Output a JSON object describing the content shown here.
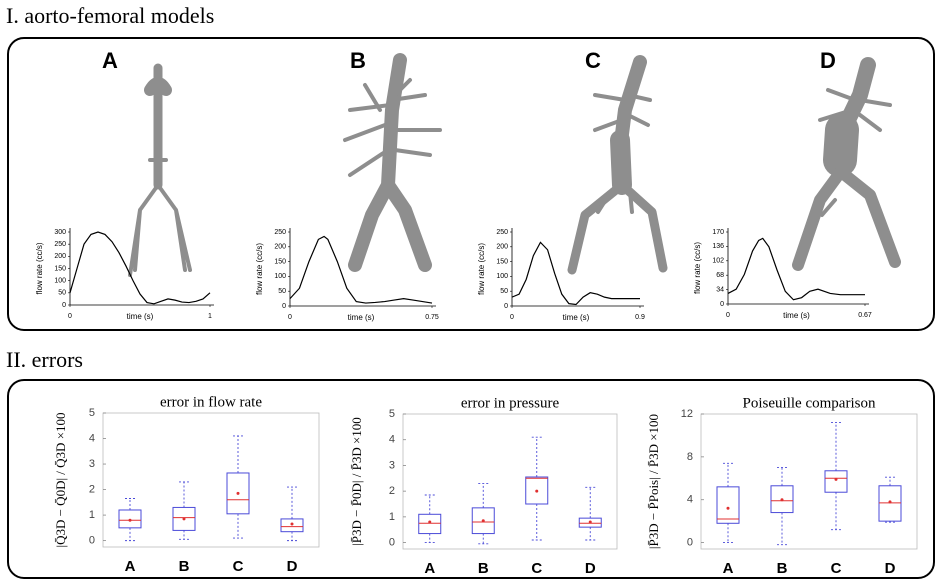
{
  "section_titles": [
    "I. aorto-femoral models",
    "II. errors"
  ],
  "panel_labels": [
    "A",
    "B",
    "C",
    "D"
  ],
  "chart_data": [
    {
      "type": "line",
      "x_label": "time (s)",
      "y_label": "flow rate (cc/s)",
      "color": "#000000",
      "x": [
        0,
        0.05,
        0.1,
        0.15,
        0.2,
        0.25,
        0.3,
        0.35,
        0.4,
        0.45,
        0.5,
        0.55,
        0.6,
        0.65,
        0.7,
        0.75,
        0.8,
        0.85,
        0.9,
        0.95,
        1
      ],
      "values": [
        50,
        150,
        250,
        290,
        300,
        290,
        260,
        215,
        160,
        100,
        45,
        10,
        5,
        15,
        25,
        20,
        12,
        10,
        15,
        25,
        50
      ],
      "xlim": [
        0,
        1
      ],
      "xticks": [
        0,
        1
      ],
      "ylim": [
        0,
        300
      ],
      "yticks": [
        0,
        50,
        100,
        150,
        200,
        250,
        300
      ]
    },
    {
      "type": "line",
      "x_label": "time (s)",
      "y_label": "flow rate (cc/s)",
      "color": "#000000",
      "x": [
        0,
        0.05,
        0.1,
        0.15,
        0.18,
        0.2,
        0.25,
        0.3,
        0.35,
        0.4,
        0.45,
        0.5,
        0.55,
        0.6,
        0.65,
        0.7,
        0.75
      ],
      "values": [
        25,
        60,
        150,
        225,
        235,
        225,
        150,
        60,
        15,
        10,
        12,
        15,
        20,
        25,
        20,
        15,
        10
      ],
      "xlim": [
        0,
        0.75
      ],
      "xticks": [
        0,
        0.75
      ],
      "ylim": [
        0,
        250
      ],
      "yticks": [
        0,
        50,
        100,
        150,
        200,
        250
      ]
    },
    {
      "type": "line",
      "x_label": "time (s)",
      "y_label": "flow rate (cc/s)",
      "color": "#000000",
      "x": [
        0,
        0.05,
        0.1,
        0.15,
        0.2,
        0.25,
        0.3,
        0.35,
        0.4,
        0.45,
        0.5,
        0.55,
        0.6,
        0.65,
        0.7,
        0.75,
        0.8,
        0.85,
        0.9
      ],
      "values": [
        30,
        40,
        90,
        170,
        215,
        190,
        110,
        40,
        8,
        5,
        30,
        45,
        40,
        30,
        25,
        25,
        25,
        25,
        25
      ],
      "xlim": [
        0,
        0.9
      ],
      "xticks": [
        0,
        0.9
      ],
      "ylim": [
        0,
        250
      ],
      "yticks": [
        0,
        50,
        100,
        150,
        200,
        250
      ]
    },
    {
      "type": "line",
      "x_label": "time (s)",
      "y_label": "flow rate (cc/s)",
      "color": "#000000",
      "x": [
        0,
        0.04,
        0.08,
        0.12,
        0.15,
        0.17,
        0.2,
        0.24,
        0.28,
        0.32,
        0.36,
        0.4,
        0.44,
        0.5,
        0.55,
        0.6,
        0.67
      ],
      "values": [
        25,
        35,
        70,
        125,
        150,
        155,
        135,
        80,
        30,
        10,
        15,
        30,
        35,
        25,
        22,
        22,
        22
      ],
      "xlim": [
        0,
        0.67
      ],
      "xticks": [
        0,
        0.67
      ],
      "ylim": [
        0,
        170
      ],
      "yticks": [
        0,
        34,
        68,
        102,
        136,
        170
      ]
    },
    {
      "type": "box",
      "title": "error in flow rate",
      "y_label": "|Q̄3D − Q̄0D| / Q̄3D ×100",
      "categories": [
        "A",
        "B",
        "C",
        "D"
      ],
      "color": "#4a4ad8",
      "median_color": "#e03030",
      "whisker_low": [
        0,
        0.05,
        0.1,
        0
      ],
      "q1": [
        0.5,
        0.4,
        1.05,
        0.35
      ],
      "median": [
        0.8,
        0.9,
        1.6,
        0.55
      ],
      "q3": [
        1.2,
        1.3,
        2.65,
        0.85
      ],
      "whisker_high": [
        1.65,
        2.3,
        4.1,
        2.1
      ],
      "mean": [
        0.8,
        0.85,
        1.85,
        0.65
      ],
      "ylim": [
        -0.25,
        5
      ],
      "yticks": [
        0,
        1,
        2,
        3,
        4,
        5
      ]
    },
    {
      "type": "box",
      "title": "error in pressure",
      "y_label": "|P̄3D − P̄0D| / P̄3D ×100",
      "categories": [
        "A",
        "B",
        "C",
        "D"
      ],
      "color": "#4a4ad8",
      "median_color": "#e03030",
      "whisker_low": [
        0,
        -0.05,
        0.1,
        0.1
      ],
      "q1": [
        0.35,
        0.35,
        1.5,
        0.6
      ],
      "median": [
        0.75,
        0.8,
        2.5,
        0.75
      ],
      "q3": [
        1.1,
        1.35,
        2.55,
        0.95
      ],
      "whisker_high": [
        1.85,
        2.3,
        4.1,
        2.15
      ],
      "mean": [
        0.8,
        0.85,
        2.0,
        0.8
      ],
      "ylim": [
        -0.25,
        5
      ],
      "yticks": [
        0,
        1,
        2,
        3,
        4,
        5
      ]
    },
    {
      "type": "box",
      "title": "Poiseuille comparison",
      "y_label": "|P̄3D − P̄Pois| / P̄3D ×100",
      "categories": [
        "A",
        "B",
        "C",
        "D"
      ],
      "color": "#4a4ad8",
      "median_color": "#e03030",
      "whisker_low": [
        0,
        -0.2,
        1.2,
        1.9
      ],
      "q1": [
        1.8,
        2.8,
        4.7,
        2.0
      ],
      "median": [
        2.2,
        3.9,
        6.0,
        3.7
      ],
      "q3": [
        5.2,
        5.3,
        6.7,
        5.3
      ],
      "whisker_high": [
        7.4,
        7.0,
        11.2,
        6.1
      ],
      "mean": [
        3.2,
        4.0,
        5.9,
        3.8
      ],
      "ylim": [
        -0.6,
        12
      ],
      "yticks": [
        0,
        4,
        8,
        12
      ]
    }
  ]
}
